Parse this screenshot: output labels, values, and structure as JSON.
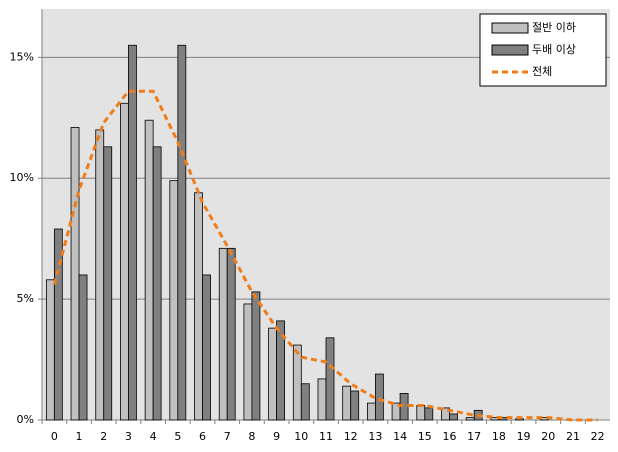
{
  "chart_data": {
    "type": "bar",
    "categories": [
      "0",
      "1",
      "2",
      "3",
      "4",
      "5",
      "6",
      "7",
      "8",
      "9",
      "10",
      "11",
      "12",
      "13",
      "14",
      "15",
      "16",
      "17",
      "18",
      "19",
      "20",
      "21",
      "22"
    ],
    "series": [
      {
        "name": "절반 이하",
        "color": "#c0c0c0",
        "values": [
          5.8,
          12.1,
          12.0,
          13.1,
          12.4,
          9.9,
          9.4,
          7.1,
          4.8,
          3.8,
          3.1,
          1.7,
          1.4,
          0.7,
          0.7,
          0.6,
          0.5,
          0.1,
          0.1,
          0.05,
          0.1,
          0,
          0
        ]
      },
      {
        "name": "두배 이상",
        "color": "#808080",
        "values": [
          7.9,
          6.0,
          11.3,
          15.5,
          11.3,
          15.5,
          6.0,
          7.1,
          5.3,
          4.1,
          1.5,
          3.4,
          1.2,
          1.9,
          1.1,
          0.5,
          0.25,
          0.4,
          0.1,
          0,
          0,
          0,
          0
        ]
      },
      {
        "name": "전체",
        "type": "line",
        "color": "#f07d1a",
        "values": [
          5.6,
          9.5,
          12.3,
          13.6,
          13.6,
          11.5,
          9.0,
          7.2,
          5.3,
          3.8,
          2.6,
          2.4,
          1.5,
          0.9,
          0.6,
          0.6,
          0.4,
          0.2,
          0.1,
          0.1,
          0.1,
          0,
          0
        ]
      }
    ],
    "ylim": [
      0,
      17
    ],
    "yticks": [
      {
        "value": 0,
        "label": "0%"
      },
      {
        "value": 5,
        "label": "5%"
      },
      {
        "value": 10,
        "label": "10%"
      },
      {
        "value": 15,
        "label": "15%"
      }
    ],
    "grid": true,
    "legend": "upper right"
  }
}
